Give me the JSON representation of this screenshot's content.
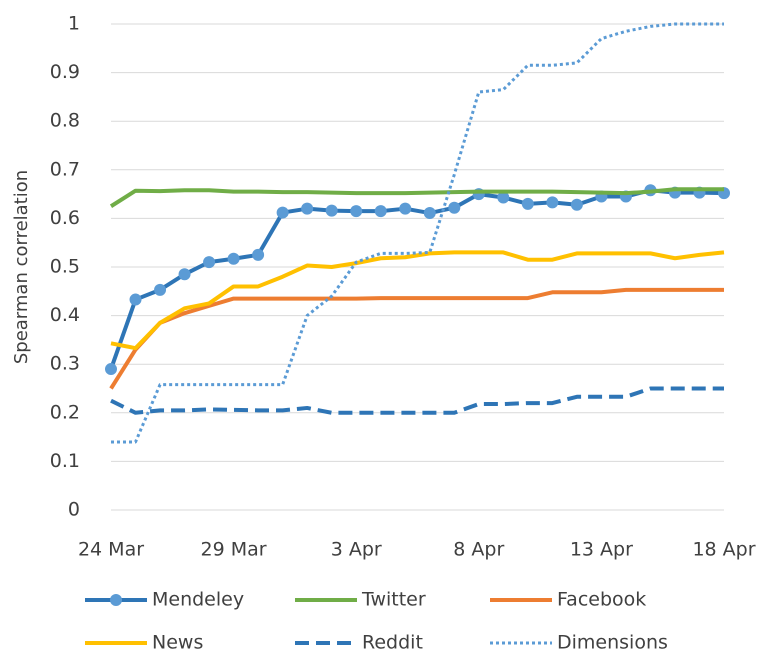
{
  "chart_data": {
    "type": "line",
    "y_label": "Spearman correlation",
    "categories": [
      "24 Mar",
      null,
      null,
      null,
      null,
      "29 Mar",
      null,
      null,
      null,
      null,
      "3 Apr",
      null,
      null,
      null,
      null,
      "8 Apr",
      null,
      null,
      null,
      null,
      "13 Apr",
      null,
      null,
      null,
      null,
      "18 Apr"
    ],
    "ylim": [
      0,
      1
    ],
    "yticks": [
      0,
      0.1,
      0.2,
      0.3,
      0.4,
      0.5,
      0.6,
      0.7,
      0.8,
      0.9,
      1
    ],
    "grid": true,
    "legend": "bottom",
    "series": [
      {
        "name": "Mendeley",
        "color": "#2e75b6",
        "marker_color": "#5b9bd5",
        "marker": true,
        "style": "solid",
        "values": [
          0.29,
          0.433,
          0.453,
          0.485,
          0.51,
          0.517,
          0.525,
          0.612,
          0.62,
          0.616,
          0.615,
          0.615,
          0.62,
          0.611,
          0.622,
          0.65,
          0.643,
          0.63,
          0.633,
          0.628,
          0.645,
          0.645,
          0.658,
          0.653,
          0.653,
          0.652
        ]
      },
      {
        "name": "Twitter",
        "color": "#70ad47",
        "marker": false,
        "style": "solid",
        "values": [
          0.625,
          0.657,
          0.656,
          0.658,
          0.658,
          0.655,
          0.655,
          0.654,
          0.654,
          0.653,
          0.652,
          0.652,
          0.652,
          0.653,
          0.654,
          0.655,
          0.655,
          0.655,
          0.655,
          0.654,
          0.653,
          0.652,
          0.655,
          0.66,
          0.66,
          0.66
        ]
      },
      {
        "name": "Facebook",
        "color": "#ed7d31",
        "marker": false,
        "style": "solid",
        "values": [
          0.25,
          0.33,
          0.385,
          0.405,
          0.42,
          0.435,
          0.435,
          0.435,
          0.435,
          0.435,
          0.435,
          0.436,
          0.436,
          0.436,
          0.436,
          0.436,
          0.436,
          0.436,
          0.448,
          0.448,
          0.448,
          0.453,
          0.453,
          0.453,
          0.453,
          0.453
        ]
      },
      {
        "name": "News",
        "color": "#ffc000",
        "marker": false,
        "style": "solid",
        "values": [
          0.343,
          0.333,
          0.385,
          0.415,
          0.425,
          0.46,
          0.46,
          0.48,
          0.503,
          0.5,
          0.508,
          0.518,
          0.52,
          0.528,
          0.53,
          0.53,
          0.53,
          0.515,
          0.515,
          0.528,
          0.528,
          0.528,
          0.528,
          0.518,
          0.525,
          0.53
        ]
      },
      {
        "name": "Reddit",
        "color": "#2e75b6",
        "marker": false,
        "style": "dashed",
        "values": [
          0.225,
          0.2,
          0.205,
          0.205,
          0.207,
          0.206,
          0.205,
          0.205,
          0.21,
          0.2,
          0.2,
          0.2,
          0.2,
          0.2,
          0.2,
          0.218,
          0.218,
          0.22,
          0.22,
          0.233,
          0.233,
          0.233,
          0.25,
          0.25,
          0.25,
          0.25
        ]
      },
      {
        "name": "Dimensions",
        "color": "#5b9bd5",
        "marker": false,
        "style": "dotted",
        "values": [
          0.14,
          0.14,
          0.258,
          0.258,
          0.258,
          0.258,
          0.258,
          0.258,
          0.4,
          0.44,
          0.51,
          0.528,
          0.528,
          0.53,
          0.69,
          0.86,
          0.865,
          0.915,
          0.915,
          0.92,
          0.97,
          0.985,
          0.995,
          1,
          1,
          1
        ]
      }
    ]
  }
}
